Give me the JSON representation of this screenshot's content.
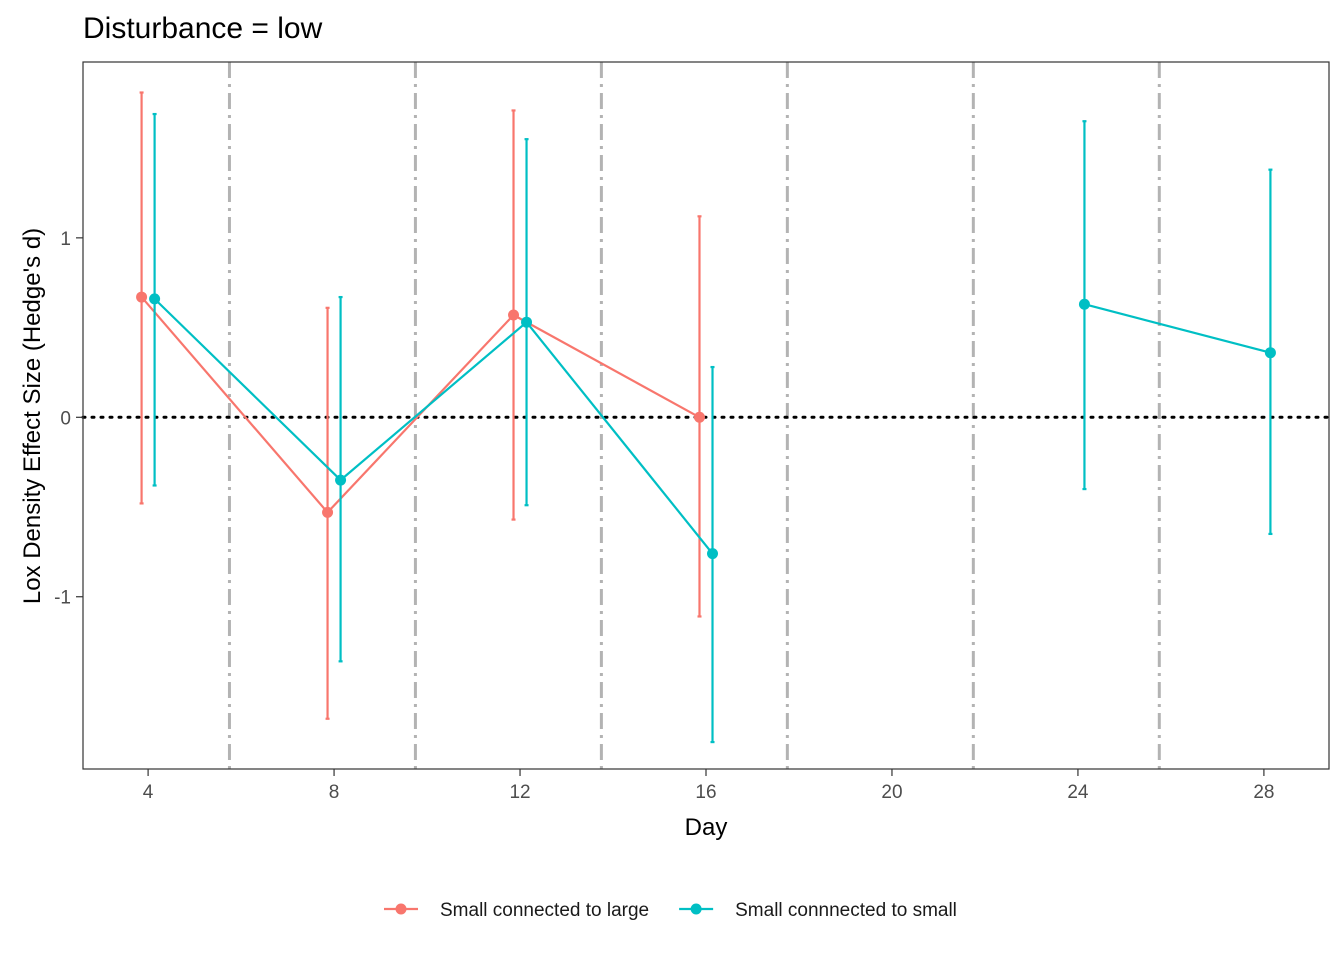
{
  "chart_data": {
    "type": "line",
    "title": "Disturbance = low",
    "xlabel": "Day",
    "ylabel": "Lox Density Effect Size (Hedge's d)",
    "x_ticks": [
      4,
      8,
      12,
      16,
      20,
      24,
      28
    ],
    "y_ticks": [
      -1,
      0,
      1
    ],
    "xlim": [
      2.6,
      29.4
    ],
    "ylim": [
      -1.96,
      1.98
    ],
    "reference_line": {
      "y": 0,
      "style": "dotted",
      "color": "#000000"
    },
    "vertical_lines": {
      "x": [
        5.75,
        9.75,
        13.75,
        17.75,
        21.75,
        25.75
      ],
      "style": "dashed",
      "color": "#b3b3b3"
    },
    "grid": false,
    "legend_position": "bottom",
    "series": [
      {
        "name": "Small connected to large",
        "color": "#F8766D",
        "points": [
          {
            "x": 4,
            "y": 0.67,
            "lower": -0.48,
            "upper": 1.81
          },
          {
            "x": 8,
            "y": -0.53,
            "lower": -1.68,
            "upper": 0.61
          },
          {
            "x": 12,
            "y": 0.57,
            "lower": -0.57,
            "upper": 1.71
          },
          {
            "x": 16,
            "y": 0.0,
            "lower": -1.11,
            "upper": 1.12
          }
        ]
      },
      {
        "name": "Small connnected to small",
        "color": "#00BFC4",
        "points": [
          {
            "x": 4,
            "y": 0.66,
            "lower": -0.38,
            "upper": 1.69
          },
          {
            "x": 8,
            "y": -0.35,
            "lower": -1.36,
            "upper": 0.67
          },
          {
            "x": 12,
            "y": 0.53,
            "lower": -0.49,
            "upper": 1.55
          },
          {
            "x": 16,
            "y": -0.76,
            "lower": -1.81,
            "upper": 0.28
          },
          {
            "x": 24,
            "y": 0.63,
            "lower": -0.4,
            "upper": 1.65
          },
          {
            "x": 28,
            "y": 0.36,
            "lower": -0.65,
            "upper": 1.38
          }
        ]
      }
    ]
  }
}
